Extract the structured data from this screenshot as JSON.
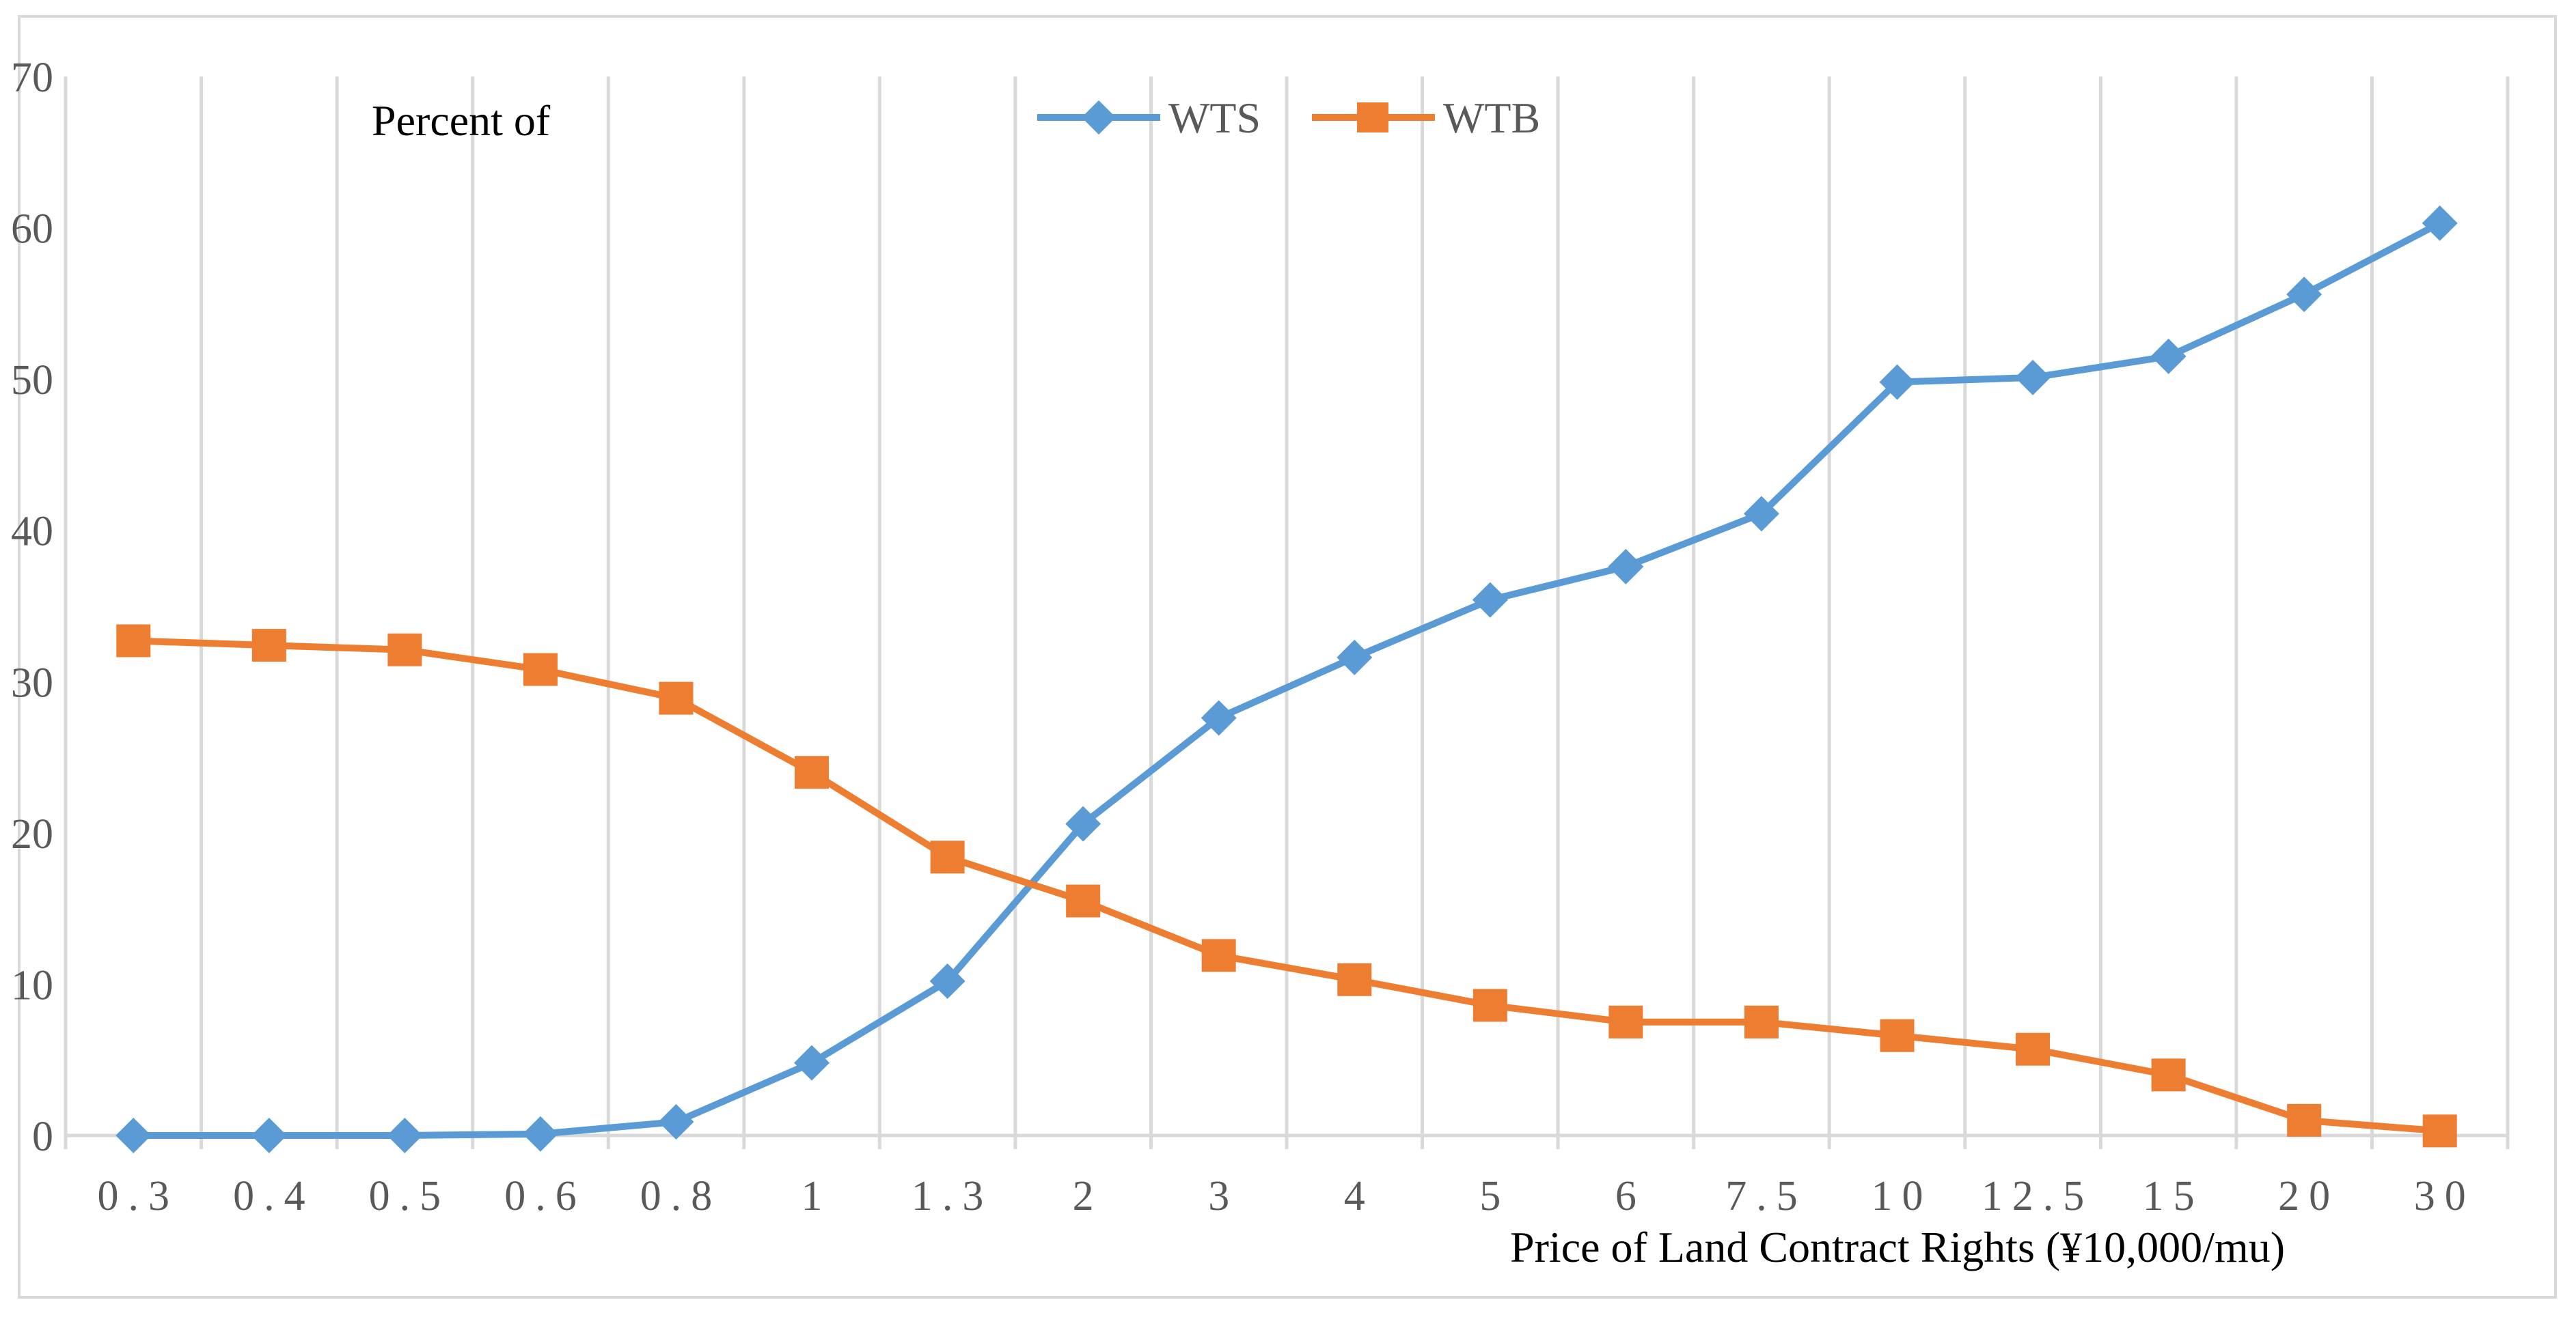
{
  "chart_data": {
    "type": "line",
    "title": "",
    "ylabel": "Percent of",
    "xlabel": "Price of Land Contract Rights (¥10,000/mu)",
    "categories": [
      "0.3",
      "0.4",
      "0.5",
      "0.6",
      "0.8",
      "1",
      "1.3",
      "2",
      "3",
      "4",
      "5",
      "6",
      "7.5",
      "10",
      "12.5",
      "15",
      "20",
      "30"
    ],
    "ylim": [
      0,
      70
    ],
    "yticks": [
      0,
      10,
      20,
      30,
      40,
      50,
      60,
      70
    ],
    "grid": "vertical",
    "legend_position": "top-center",
    "series": [
      {
        "name": "WTS",
        "color": "#5b9bd5",
        "marker": "diamond",
        "values": [
          0,
          0,
          0,
          0.1,
          0.9,
          4.8,
          10.2,
          20.6,
          27.6,
          31.6,
          35.4,
          37.6,
          41.1,
          49.8,
          50.1,
          51.5,
          55.6,
          60.3
        ]
      },
      {
        "name": "WTB",
        "color": "#ed7d31",
        "marker": "square",
        "values": [
          32.7,
          32.4,
          32.1,
          30.8,
          28.9,
          24.0,
          18.4,
          15.5,
          11.9,
          10.3,
          8.6,
          7.5,
          7.5,
          6.6,
          5.7,
          4.0,
          1.0,
          0.3
        ]
      }
    ]
  }
}
